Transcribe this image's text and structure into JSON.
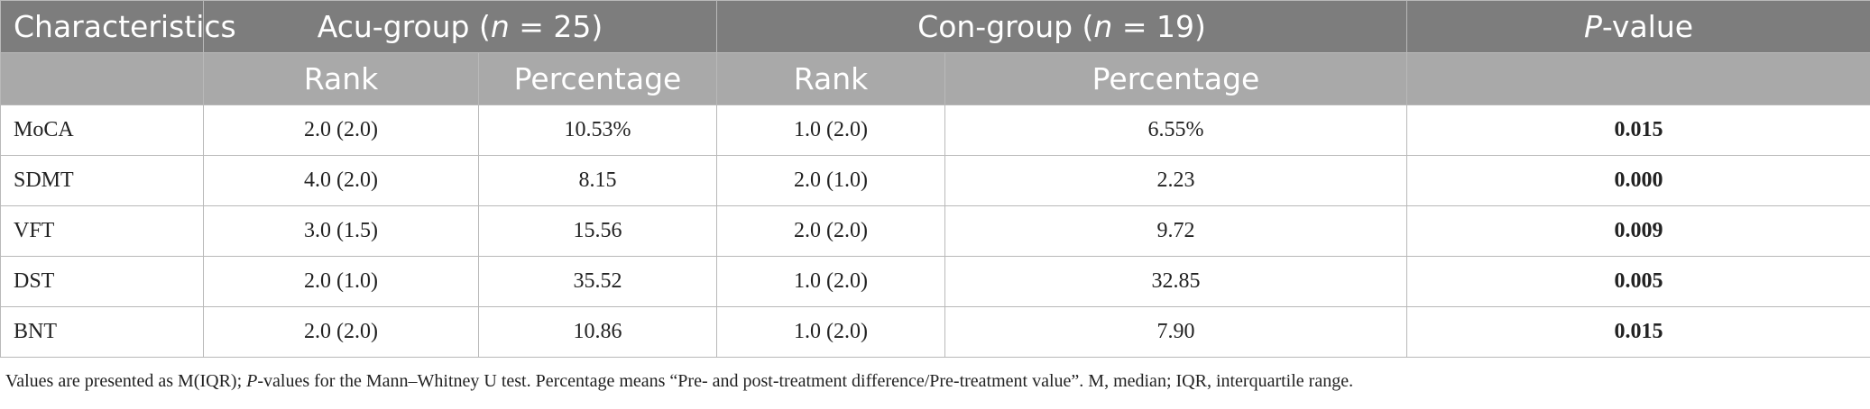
{
  "table": {
    "header_main": {
      "characteristics": "Characteristics",
      "acu_prefix": "Acu-group (",
      "acu_n": "n",
      "acu_suffix": " = 25)",
      "con_prefix": "Con-group (",
      "con_n": "n",
      "con_suffix": " = 19)",
      "p_italic": "P",
      "p_suffix": "-value"
    },
    "header_sub": {
      "acu_rank": "Rank",
      "acu_percentage": "Percentage",
      "con_rank": "Rank",
      "con_percentage": "Percentage"
    },
    "rows": [
      {
        "name": "MoCA",
        "acu_rank": "2.0 (2.0)",
        "acu_pct": "10.53%",
        "con_rank": "1.0 (2.0)",
        "con_pct": "6.55%",
        "p": "0.015"
      },
      {
        "name": "SDMT",
        "acu_rank": "4.0 (2.0)",
        "acu_pct": "8.15",
        "con_rank": "2.0 (1.0)",
        "con_pct": "2.23",
        "p": "0.000"
      },
      {
        "name": "VFT",
        "acu_rank": "3.0 (1.5)",
        "acu_pct": "15.56",
        "con_rank": "2.0 (2.0)",
        "con_pct": "9.72",
        "p": "0.009"
      },
      {
        "name": "DST",
        "acu_rank": "2.0 (1.0)",
        "acu_pct": "35.52",
        "con_rank": "1.0 (2.0)",
        "con_pct": "32.85",
        "p": "0.005"
      },
      {
        "name": "BNT",
        "acu_rank": "2.0 (2.0)",
        "acu_pct": "10.86",
        "con_rank": "1.0 (2.0)",
        "con_pct": "7.90",
        "p": "0.015"
      }
    ]
  },
  "footnote": {
    "part1": "Values are presented as M(IQR); ",
    "p_italic": "P",
    "part2": "-values for the Mann–Whitney U test. Percentage means “Pre- and post-treatment difference/Pre-treatment value”. M, median; IQR, interquartile range."
  }
}
